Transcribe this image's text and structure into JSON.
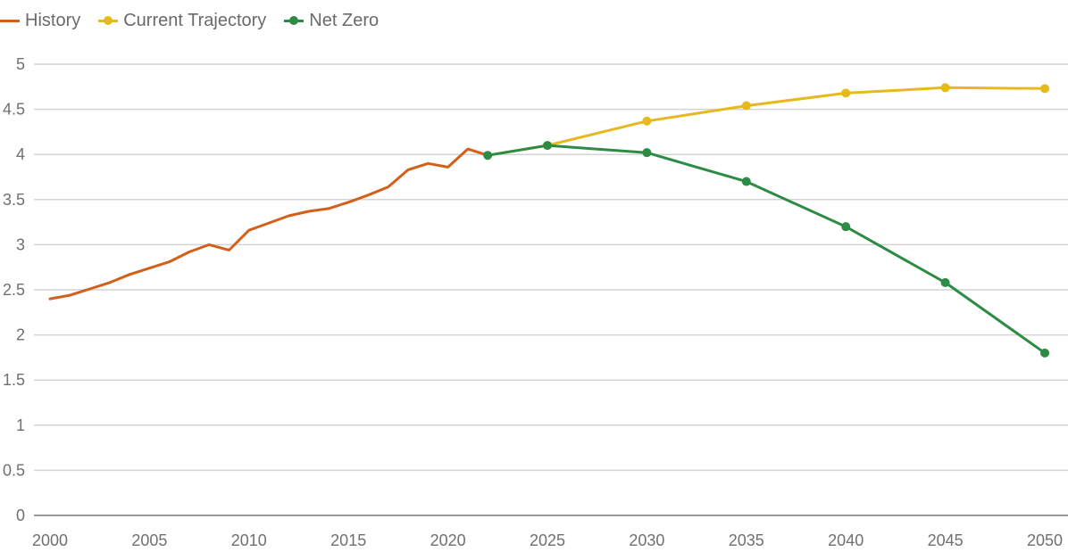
{
  "chart_data": {
    "type": "line",
    "title": "",
    "xlabel": "",
    "ylabel": "",
    "xlim": [
      2000,
      2050
    ],
    "ylim": [
      0,
      5
    ],
    "grid": true,
    "legend_position": "top-left",
    "x_ticks": [
      "2000",
      "2005",
      "2010",
      "2015",
      "2020",
      "2025",
      "2030",
      "2035",
      "2040",
      "2045",
      "2050"
    ],
    "y_ticks": [
      "0",
      "0.5",
      "1",
      "1.5",
      "2",
      "2.5",
      "3",
      "3.5",
      "4",
      "4.5",
      "5"
    ],
    "series": [
      {
        "name": "History",
        "color": "#d2601a",
        "markers": false,
        "x": [
          2000,
          2001,
          2002,
          2003,
          2004,
          2005,
          2006,
          2007,
          2008,
          2009,
          2010,
          2011,
          2012,
          2013,
          2014,
          2015,
          2016,
          2017,
          2018,
          2019,
          2020,
          2021,
          2022
        ],
        "y": [
          2.4,
          2.44,
          2.51,
          2.58,
          2.67,
          2.74,
          2.81,
          2.92,
          3.0,
          2.94,
          3.16,
          3.24,
          3.32,
          3.37,
          3.4,
          3.47,
          3.55,
          3.64,
          3.83,
          3.9,
          3.86,
          4.06,
          3.99
        ]
      },
      {
        "name": "Current Trajectory",
        "color": "#e6b91e",
        "markers": true,
        "x": [
          2022,
          2025,
          2030,
          2035,
          2040,
          2045,
          2050
        ],
        "y": [
          3.99,
          4.1,
          4.37,
          4.54,
          4.68,
          4.74,
          4.73
        ]
      },
      {
        "name": "Net Zero",
        "color": "#2e8b45",
        "markers": true,
        "x": [
          2022,
          2025,
          2030,
          2035,
          2040,
          2045,
          2050
        ],
        "y": [
          3.99,
          4.1,
          4.02,
          3.7,
          3.2,
          2.58,
          1.8
        ]
      }
    ]
  }
}
